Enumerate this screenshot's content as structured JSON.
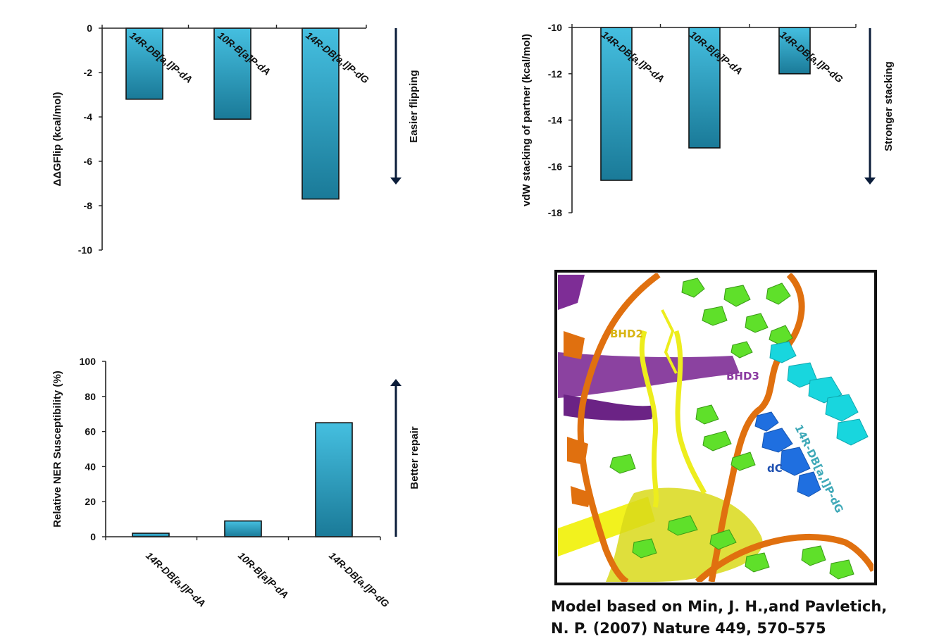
{
  "colors": {
    "bar_top": "#45bfe0",
    "bar_bottom": "#1a7a98",
    "axis": "#222222",
    "arrow": "#0b1d3a",
    "dna_backbone": "#e0700f",
    "bases": "#5fe02a",
    "protein_yellow": "#f2f21e",
    "bhd3_purple": "#7e2d96",
    "bhd2_label": "#d8b412",
    "bhd3_label": "#8a3aa0",
    "lesion_cyan": "#18d6de",
    "dc_blue": "#1f6fe0",
    "lesion_label": "#3fa9b8",
    "dc_label": "#1d4fb0"
  },
  "chart_data": [
    {
      "type": "bar",
      "categories": [
        "14R-DB[a,l]P-dA",
        "10R-B[a]P-dA",
        "14R-DB[a,l]P-dG"
      ],
      "values": [
        -3.2,
        -4.1,
        -7.7
      ],
      "ylabel": "ΔΔGFlip (kcal/mol)",
      "ylim": [
        -10,
        0
      ],
      "yticks": [
        "0",
        "-2",
        "-4",
        "-6",
        "-8",
        "-10"
      ],
      "arrow_label": "Easier  flipping",
      "arrow_direction": "down"
    },
    {
      "type": "bar",
      "categories": [
        "14R-DB[a,l]P-dA",
        "10R-B[a]P-dA",
        "14R-DB[a,l]P-dG"
      ],
      "values": [
        -16.6,
        -15.2,
        -12.0
      ],
      "ylabel": "vdW stacking of  partner (kcal/mol)",
      "ylim": [
        -18,
        -10
      ],
      "yticks": [
        "-10",
        "-12",
        "-14",
        "-16",
        "-18"
      ],
      "arrow_label": "Stronger stacking",
      "arrow_direction": "down"
    },
    {
      "type": "bar",
      "categories": [
        "14R-DB[a,l]P-dA",
        "10R-B[a]P-dA",
        "14R-DB[a,l]P-dG"
      ],
      "values": [
        2,
        9,
        65
      ],
      "ylabel": "Relative NER Susceptibility (%)",
      "ylim": [
        0,
        100
      ],
      "yticks": [
        "0",
        "20",
        "40",
        "60",
        "80",
        "100"
      ],
      "arrow_label": "Better repair",
      "arrow_direction": "up"
    }
  ],
  "structure_panel": {
    "labels": {
      "bhd2": "BHD2",
      "bhd3": "BHD3",
      "dc": "dC",
      "lesion": "14R-DB[a,l]P-dG"
    }
  },
  "caption": {
    "line1": "Model based on Min, J. H.,and Pavletich,",
    "line2": "N. P. (2007) Nature 449, 570–575"
  }
}
